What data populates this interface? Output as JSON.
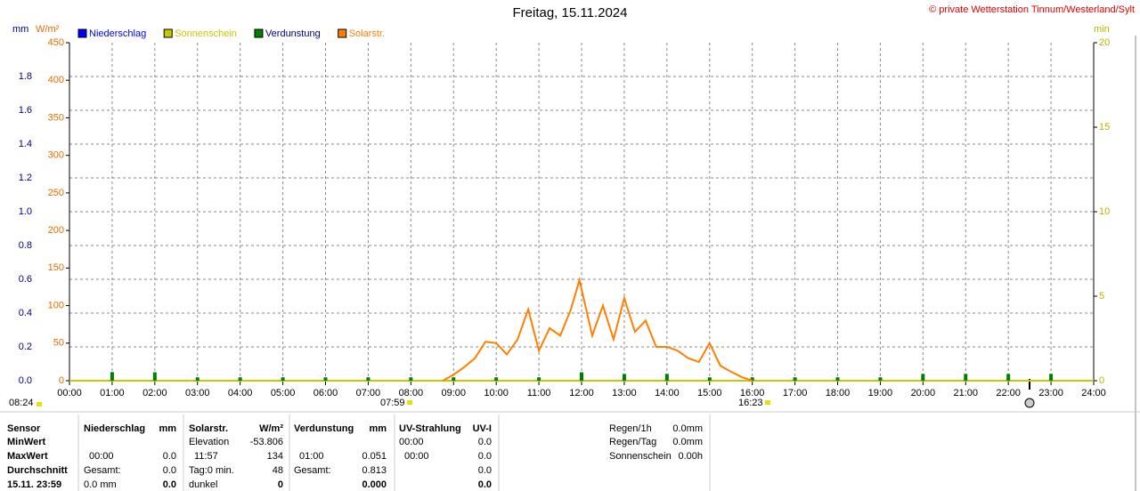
{
  "chart_data": {
    "type": "line",
    "title": "Freitag, 15.11.2024",
    "copyright": "© private Wetterstation Tinnum/Westerland/Sylt",
    "ylabel": "mm",
    "ylabel2": "W/m²",
    "y2label": "min",
    "xlim": [
      0,
      24
    ],
    "xticks": [
      {
        "value": 0,
        "label": "00:00"
      },
      {
        "value": 1,
        "label": "01:00"
      },
      {
        "value": 2,
        "label": "02:00"
      },
      {
        "value": 3,
        "label": "03:00"
      },
      {
        "value": 4,
        "label": "04:00"
      },
      {
        "value": 5,
        "label": "05:00"
      },
      {
        "value": 6,
        "label": "06:00"
      },
      {
        "value": 7,
        "label": "07:00"
      },
      {
        "value": 8,
        "label": "08:00"
      },
      {
        "value": 9,
        "label": "09:00"
      },
      {
        "value": 10,
        "label": "10:00"
      },
      {
        "value": 11,
        "label": "11:00"
      },
      {
        "value": 12,
        "label": "12:00"
      },
      {
        "value": 13,
        "label": "13:00"
      },
      {
        "value": 14,
        "label": "14:00"
      },
      {
        "value": 15,
        "label": "15:00"
      },
      {
        "value": 16,
        "label": "16:00"
      },
      {
        "value": 17,
        "label": "17:00"
      },
      {
        "value": 18,
        "label": "18:00"
      },
      {
        "value": 19,
        "label": "19:00"
      },
      {
        "value": 20,
        "label": "20:00"
      },
      {
        "value": 21,
        "label": "21:00"
      },
      {
        "value": 22,
        "label": "22:00"
      },
      {
        "value": 23,
        "label": "23:00"
      },
      {
        "value": 24,
        "label": "24:00"
      }
    ],
    "ylim": [
      0,
      2
    ],
    "yticks": [
      {
        "value": 0,
        "label": "0.0"
      },
      0.2,
      0.4,
      0.6,
      0.8,
      {
        "value": 1,
        "label": "1.0"
      },
      1.2,
      1.4,
      1.6,
      1.8
    ],
    "ylim_solar": [
      0,
      450
    ],
    "yticks_solar": [
      0,
      50,
      100,
      150,
      200,
      250,
      300,
      350,
      400,
      450
    ],
    "y2lim": [
      0,
      20
    ],
    "y2ticks": [
      0,
      5,
      10,
      15,
      20
    ],
    "grid": true,
    "annotations": [
      "08:24",
      "07:59",
      "16:23"
    ],
    "series": [
      {
        "name": "Niederschlag",
        "color": "#0000ff",
        "x": [
          0,
          24
        ],
        "values": [
          0,
          0
        ]
      },
      {
        "name": "Sonnenschein",
        "color": "#c8c800",
        "axis": "y2",
        "x": [
          0,
          24
        ],
        "values": [
          0,
          0
        ]
      },
      {
        "name": "Verdunstung",
        "color": "#008000",
        "x": [
          1,
          2,
          3,
          4,
          5,
          6,
          7,
          8,
          9,
          10,
          11,
          12,
          13,
          14,
          15,
          16,
          17,
          18,
          19,
          20,
          21,
          22,
          23
        ],
        "values": [
          0.051,
          0.05,
          0.02,
          0.02,
          0.02,
          0.02,
          0.02,
          0.02,
          0.02,
          0.02,
          0.02,
          0.05,
          0.04,
          0.04,
          0.02,
          0.02,
          0.02,
          0.02,
          0.02,
          0.04,
          0.04,
          0.04,
          0.04
        ]
      },
      {
        "name": "Solarstr.",
        "color": "#ff8000",
        "axis": "solar",
        "x": [
          8.75,
          9,
          9.25,
          9.5,
          9.75,
          10,
          10.25,
          10.5,
          10.75,
          11,
          11.25,
          11.5,
          11.75,
          11.95,
          12.25,
          12.5,
          12.75,
          13,
          13.25,
          13.5,
          13.75,
          14,
          14.25,
          14.5,
          14.75,
          15,
          15.25,
          15.5,
          15.75,
          16
        ],
        "values": [
          0,
          8,
          18,
          30,
          52,
          50,
          35,
          55,
          95,
          40,
          70,
          60,
          95,
          134,
          60,
          100,
          55,
          110,
          65,
          80,
          45,
          45,
          40,
          30,
          25,
          50,
          20,
          12,
          5,
          0
        ]
      }
    ]
  },
  "table": {
    "row_heads": [
      "Sensor",
      "MinWert",
      "MaxWert",
      "Durchschnitt",
      "15.11. 23:59"
    ],
    "columns": [
      {
        "header": [
          "Niederschlag",
          "mm"
        ],
        "rows": [
          [
            null,
            null
          ],
          [
            "00:00",
            "0.0"
          ],
          [
            "Gesamt:",
            "0.0"
          ],
          [
            "0.0 mm",
            "0.0"
          ]
        ]
      },
      {
        "header": [
          "Solarstr.",
          "W/m²"
        ],
        "rows": [
          [
            "Elevation",
            "-53.806"
          ],
          [
            "11:57",
            "134"
          ],
          [
            "Tag:0 min.",
            "48"
          ],
          [
            "dunkel",
            "0"
          ]
        ]
      },
      {
        "header": [
          "Verdunstung",
          "mm"
        ],
        "rows": [
          [
            null,
            null
          ],
          [
            "01:00",
            "0.051"
          ],
          [
            "Gesamt:",
            "0.813"
          ],
          [
            null,
            "0.000"
          ]
        ]
      },
      {
        "header": [
          "UV-Strahlung",
          "UV-I"
        ],
        "rows": [
          [
            "00:00",
            "0.0"
          ],
          [
            "00:00",
            "0.0"
          ],
          [
            null,
            "0.0"
          ],
          [
            null,
            "0.0"
          ]
        ]
      }
    ],
    "extra": [
      [
        "Regen/1h",
        "0.0mm"
      ],
      [
        "Regen/Tag",
        "0.0mm"
      ],
      [
        "Sonnenschein",
        "0.00h"
      ]
    ]
  }
}
